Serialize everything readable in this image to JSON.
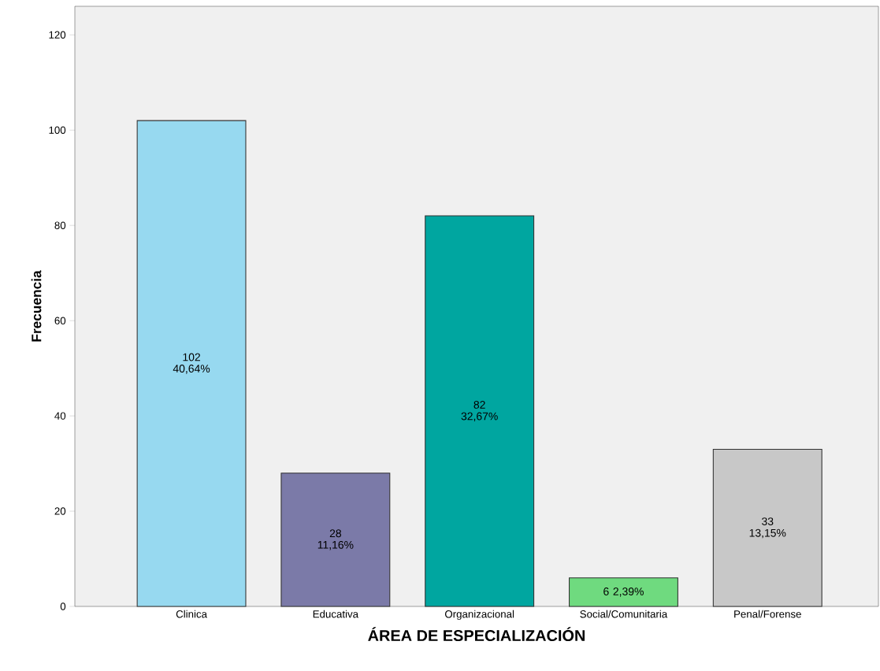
{
  "chart_data": {
    "type": "bar",
    "xlabel": "ÁREA DE ESPECIALIZACIÓN",
    "ylabel": "Frecuencia",
    "categories": [
      "Clinica",
      "Educativa",
      "Organizacional",
      "Social/Comunitaria",
      "Penal/Forense"
    ],
    "values": [
      102,
      28,
      82,
      6,
      33
    ],
    "colors": [
      "#97d9f0",
      "#7b7aa8",
      "#00a6a0",
      "#6fda7f",
      "#c8c8c8"
    ],
    "value_labels": [
      "102 40,64%",
      "28 11,16%",
      "82 32,67%",
      "6 2,39%",
      "33 13,15%"
    ],
    "ylim": [
      0,
      126
    ],
    "yticks": [
      0,
      20,
      40,
      60,
      80,
      100,
      120
    ],
    "grid": false
  }
}
